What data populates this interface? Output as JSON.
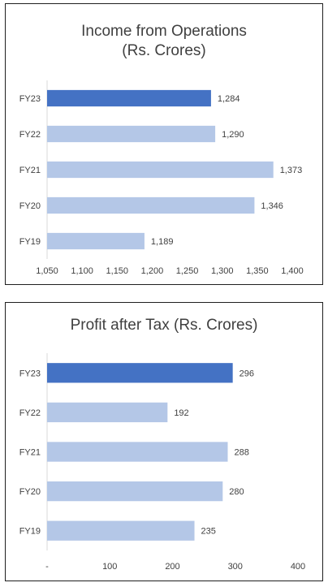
{
  "colors": {
    "highlight": "#4472c4",
    "bar": "#b4c7e7",
    "axis": "#d9d9d9",
    "text": "#404040",
    "border": "#1f1f1f"
  },
  "chart_data": [
    {
      "type": "bar",
      "orientation": "horizontal",
      "title_lines": [
        "Income from Operations",
        "(Rs. Crores)"
      ],
      "categories": [
        "FY23",
        "FY22",
        "FY21",
        "FY20",
        "FY19"
      ],
      "values": [
        1284,
        1290,
        1373,
        1346,
        1189
      ],
      "value_labels": [
        "1,284",
        "1,290",
        "1,373",
        "1,346",
        "1,189"
      ],
      "highlight_category": "FY23",
      "xlim": [
        1050,
        1400
      ],
      "xticks": [
        1050,
        1100,
        1150,
        1200,
        1250,
        1300,
        1350,
        1400
      ],
      "xtick_labels": [
        "1,050",
        "1,100",
        "1,150",
        "1,200",
        "1,250",
        "1,300",
        "1,350",
        "1,400"
      ],
      "grid": false,
      "legend": "none"
    },
    {
      "type": "bar",
      "orientation": "horizontal",
      "title_lines": [
        "Profit after Tax (Rs. Crores)"
      ],
      "categories": [
        "FY23",
        "FY22",
        "FY21",
        "FY20",
        "FY19"
      ],
      "values": [
        296,
        192,
        288,
        280,
        235
      ],
      "value_labels": [
        "296",
        "192",
        "288",
        "280",
        "235"
      ],
      "highlight_category": "FY23",
      "xlim": [
        0,
        400
      ],
      "xticks": [
        0,
        100,
        200,
        300,
        400
      ],
      "xtick_labels": [
        "-",
        "100",
        "200",
        "300",
        "400"
      ],
      "grid": false,
      "legend": "none"
    }
  ]
}
